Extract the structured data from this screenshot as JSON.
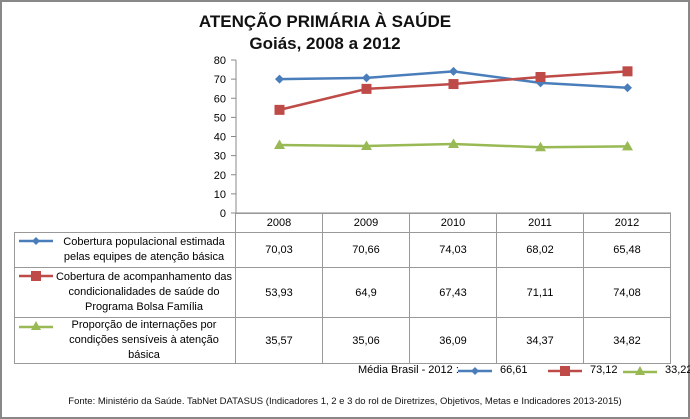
{
  "chart_data": {
    "type": "line",
    "title": "ATENÇÃO PRIMÁRIA À SAÚDE",
    "subtitle": "Goiás, 2008 a 2012",
    "categories": [
      "2008",
      "2009",
      "2010",
      "2011",
      "2012"
    ],
    "ylim": [
      0,
      80
    ],
    "yticks": [
      "0",
      "10",
      "20",
      "30",
      "40",
      "50",
      "60",
      "70",
      "80"
    ],
    "grid": false,
    "series": [
      {
        "name": "Cobertura populacional estimada pelas equipes de atenção básica",
        "label_lines": [
          "Cobertura populacional estimada",
          "pelas equipes de atenção básica"
        ],
        "color": "#4a7ebb",
        "marker": "diamond",
        "values": [
          70.03,
          70.66,
          74.03,
          68.02,
          65.48
        ],
        "display_values": [
          "70,03",
          "70,66",
          "74,03",
          "68,02",
          "65,48"
        ]
      },
      {
        "name": "Cobertura de acompanhamento das condicionalidades de saúde do Programa Bolsa Família",
        "label_lines": [
          "Cobertura de acompanhamento das",
          "condicionalidades de saúde do",
          "Programa Bolsa Família"
        ],
        "color": "#be4b48",
        "marker": "square",
        "values": [
          53.93,
          64.9,
          67.43,
          71.11,
          74.08
        ],
        "display_values": [
          "53,93",
          "64,9",
          "67,43",
          "71,11",
          "74,08"
        ]
      },
      {
        "name": "Proporção de internações por condições sensíveis à atenção básica",
        "label_lines": [
          "Proporção de internações por",
          "condições sensíveis à atenção básica"
        ],
        "color": "#98b954",
        "marker": "triangle",
        "values": [
          35.57,
          35.06,
          36.09,
          34.37,
          34.82
        ],
        "display_values": [
          "35,57",
          "35,06",
          "36,09",
          "34,37",
          "34,82"
        ]
      }
    ],
    "annotation": {
      "label": "Média Brasil - 2012 :",
      "values": [
        "66,61",
        "73,12",
        "33,22"
      ]
    },
    "source": "Fonte: Ministério da Saúde. TabNet DATASUS (Indicadores 1, 2 e 3 do rol de Diretrizes, Objetivos, Metas e Indicadores 2013-2015)"
  }
}
